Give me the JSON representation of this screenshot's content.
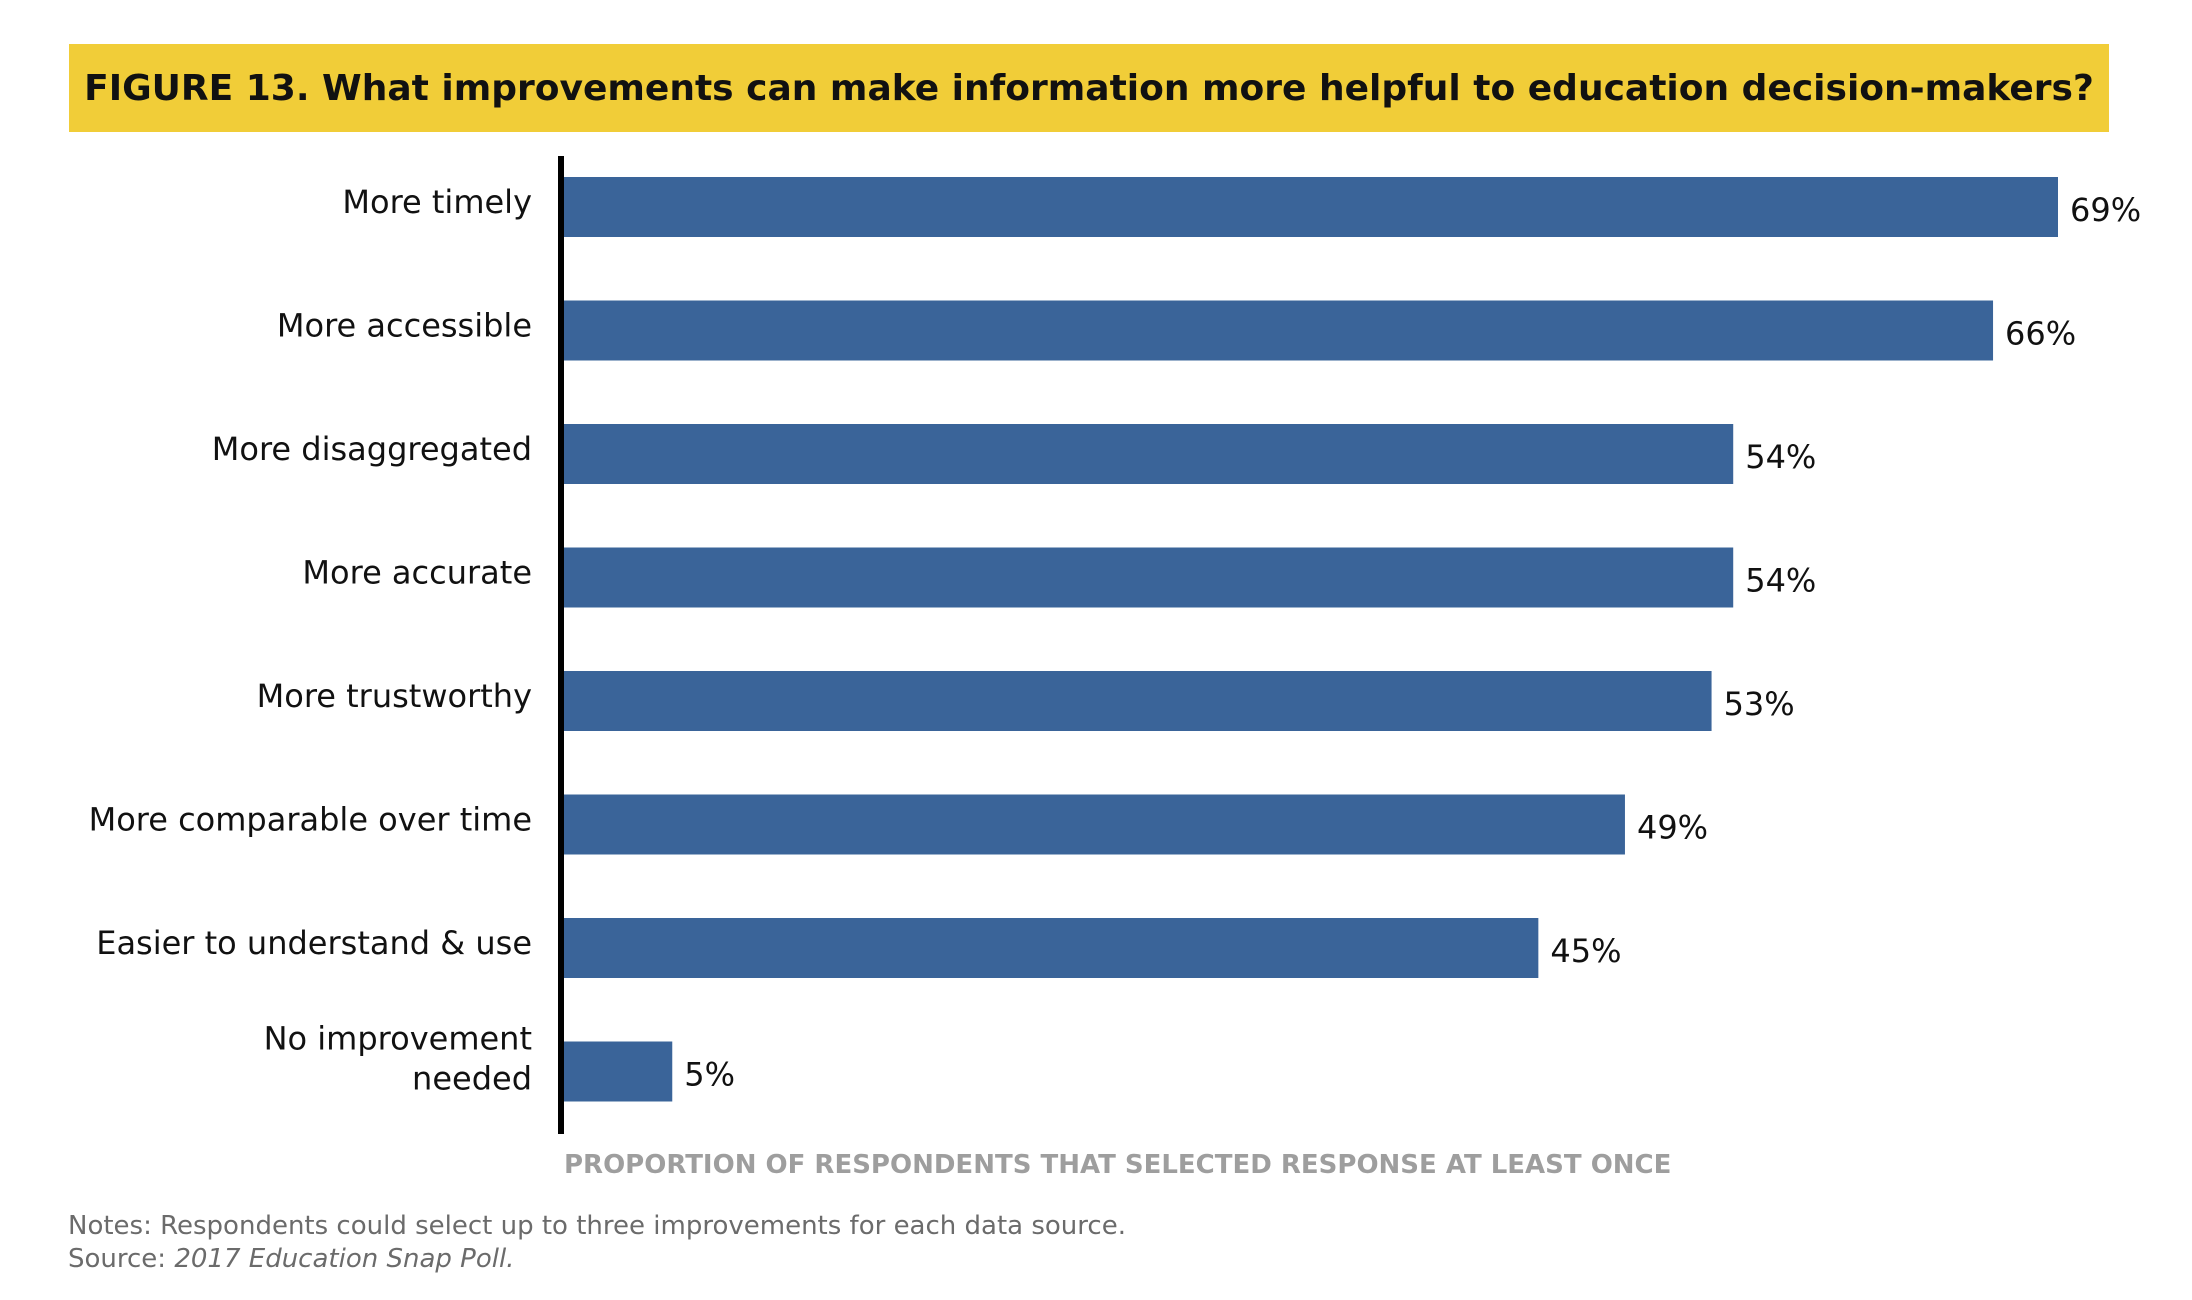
{
  "title": "FIGURE 13. What improvements can make information more helpful to education decision-makers?",
  "colors": {
    "title_band": "#f1cd38",
    "bar": "#3a6499",
    "axis": "#000000",
    "xlabel": "#9e9e9e",
    "notes": "#6b6b6b"
  },
  "notes": {
    "line1": "Notes: Respondents could select up to three improvements for each data source.",
    "source_prefix": "Source: ",
    "source_title": "2017 Education Snap Poll."
  },
  "chart_data": {
    "type": "bar",
    "orientation": "horizontal",
    "title": "FIGURE 13. What improvements can make information more helpful to education decision-makers?",
    "xlabel": "PROPORTION OF RESPONDENTS THAT SELECTED RESPONSE AT LEAST ONCE",
    "ylabel": "",
    "categories": [
      [
        "More timely"
      ],
      [
        "More accessible"
      ],
      [
        "More disaggregated"
      ],
      [
        "More accurate"
      ],
      [
        "More trustworthy"
      ],
      [
        "More comparable over time"
      ],
      [
        "Easier to understand & use"
      ],
      [
        "No improvement",
        "needed"
      ]
    ],
    "values": [
      69,
      66,
      54,
      54,
      53,
      49,
      45,
      5
    ],
    "value_labels": [
      "69%",
      "66%",
      "54%",
      "54%",
      "53%",
      "49%",
      "45%",
      "5%"
    ],
    "xlim": [
      0,
      69
    ],
    "grid": false,
    "legend": "none"
  }
}
